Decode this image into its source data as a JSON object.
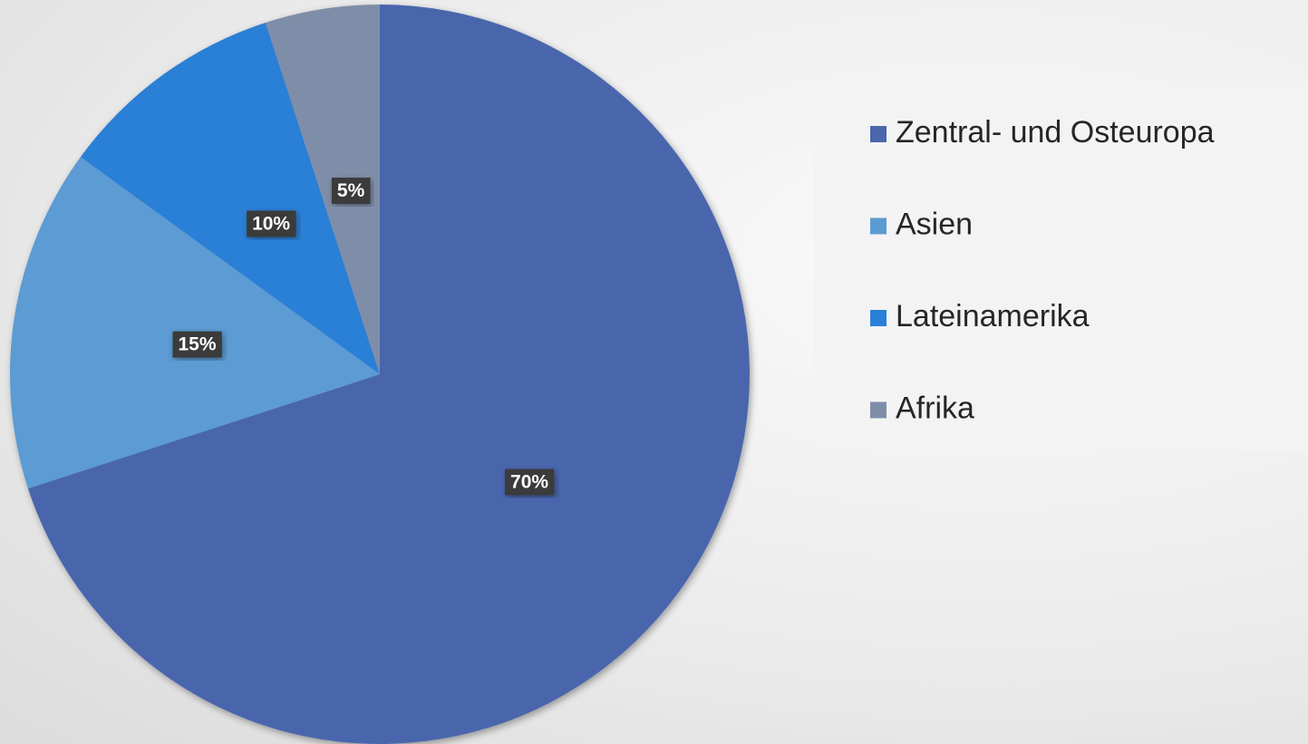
{
  "chart_data": {
    "type": "pie",
    "categories": [
      "Zentral- und Osteuropa",
      "Asien",
      "Lateinamerika",
      "Afrika"
    ],
    "values": [
      70,
      15,
      10,
      5
    ],
    "value_labels": [
      "70%",
      "15%",
      "10%",
      "5%"
    ],
    "colors": [
      "#4a66ad",
      "#5b9bd3",
      "#2a7fd6",
      "#7f8ea8"
    ],
    "legend": "right"
  }
}
